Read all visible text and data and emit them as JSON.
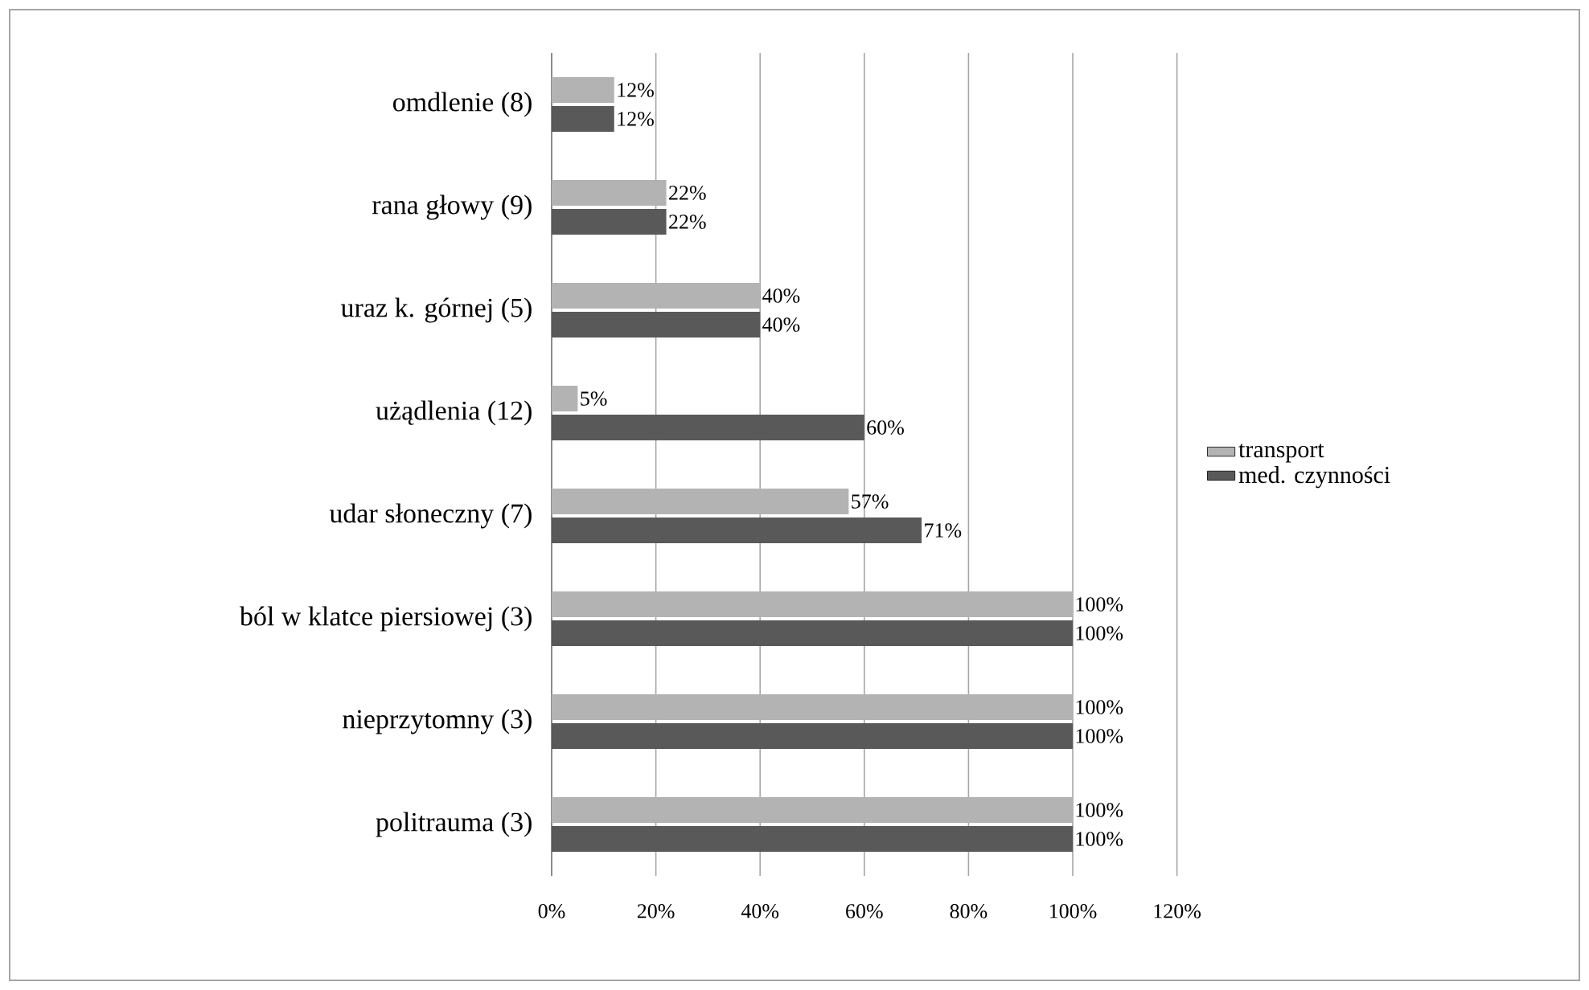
{
  "chart_data": {
    "type": "bar",
    "orientation": "horizontal",
    "categories": [
      "omdlenie (8)",
      "rana głowy  (9)",
      "uraz k. górnej (5)",
      "użądlenia (12)",
      "udar słoneczny (7)",
      "ból w klatce piersiowej (3)",
      "nieprzytomny (3)",
      "politrauma (3)"
    ],
    "series": [
      {
        "name": "transport",
        "color": "#b3b3b3",
        "values": [
          12,
          22,
          40,
          5,
          57,
          100,
          100,
          100
        ],
        "value_labels": [
          "12%",
          "22%",
          "40%",
          "5%",
          "57%",
          "100%",
          "100%",
          "100%"
        ]
      },
      {
        "name": "med. czynności",
        "color": "#595959",
        "values": [
          12,
          22,
          40,
          60,
          71,
          100,
          100,
          100
        ],
        "value_labels": [
          "12%",
          "22%",
          "40%",
          "60%",
          "71%",
          "100%",
          "100%",
          "100%"
        ]
      }
    ],
    "xlim": [
      0,
      120
    ],
    "xticks": [
      {
        "value": 0,
        "label": "0%"
      },
      {
        "value": 20,
        "label": "20%"
      },
      {
        "value": 40,
        "label": "40%"
      },
      {
        "value": 60,
        "label": "60%"
      },
      {
        "value": 80,
        "label": "80%"
      },
      {
        "value": 100,
        "label": "100%"
      },
      {
        "value": 120,
        "label": "120%"
      }
    ],
    "grid": "x",
    "legend": "right"
  }
}
